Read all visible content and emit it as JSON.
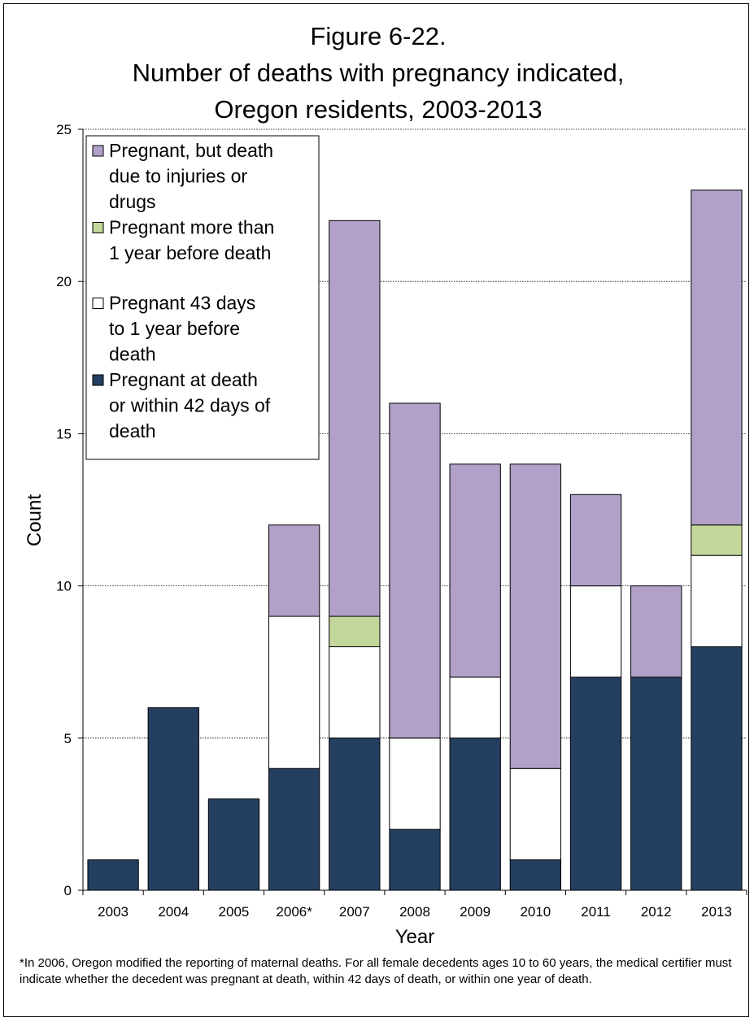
{
  "chart_data": {
    "type": "bar",
    "stacked": true,
    "title_lines": [
      "Figure 6-22.",
      "Number of deaths with pregnancy indicated,",
      "Oregon residents, 2003-2013"
    ],
    "xlabel": "Year",
    "ylabel": "Count",
    "ylim": [
      0,
      25
    ],
    "yticks": [
      0,
      5,
      10,
      15,
      20,
      25
    ],
    "grid": true,
    "legend_position": "top-left",
    "categories": [
      "2003",
      "2004",
      "2005",
      "2006*",
      "2007",
      "2008",
      "2009",
      "2010",
      "2011",
      "2012",
      "2013"
    ],
    "series": [
      {
        "name": "Pregnant at death or within 42 days of death",
        "legend_lines": [
          "Pregnant at death",
          "or within 42 days of",
          "death"
        ],
        "color": "#243f60",
        "values": [
          1,
          6,
          3,
          4,
          5,
          2,
          5,
          1,
          7,
          7,
          8
        ]
      },
      {
        "name": "Pregnant 43 days to 1 year before death",
        "legend_lines": [
          "Pregnant 43 days",
          "to 1 year before",
          "death"
        ],
        "color": "#ffffff",
        "values": [
          0,
          0,
          0,
          5,
          3,
          3,
          2,
          3,
          3,
          0,
          3
        ]
      },
      {
        "name": "Pregnant more than 1 year before death",
        "legend_lines": [
          "Pregnant more than",
          "1 year before death"
        ],
        "color": "#c4d79b",
        "values": [
          0,
          0,
          0,
          0,
          1,
          0,
          0,
          0,
          0,
          0,
          1
        ]
      },
      {
        "name": "Pregnant, but death due to injuries or drugs",
        "legend_lines": [
          "Pregnant, but death",
          "due to injuries or",
          "drugs"
        ],
        "color": "#b1a0c7",
        "values": [
          0,
          0,
          0,
          3,
          13,
          11,
          7,
          10,
          3,
          3,
          11
        ]
      }
    ]
  },
  "footnote": "*In 2006, Oregon modified the reporting of maternal deaths. For all female decedents ages 10 to 60 years, the medical certifier must indicate whether the decedent was pregnant at death, within 42 days of death, or within one year of death."
}
